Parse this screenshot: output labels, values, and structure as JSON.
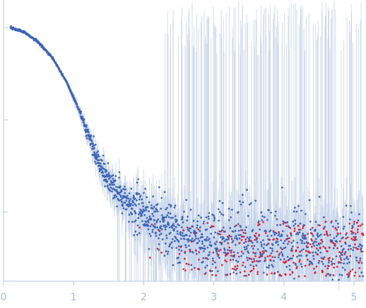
{
  "chart_data": {
    "type": "scatter",
    "title": "",
    "xlabel": "",
    "ylabel": "",
    "xlim": [
      0,
      5.15
    ],
    "y_scale": "log",
    "ylim_log10": [
      -2.75,
      0.3
    ],
    "y_ticks_log10": [
      0,
      -1,
      -2
    ],
    "x_ticks": [
      0,
      1,
      2,
      3,
      4,
      5
    ],
    "x_tick_labels": [
      "0",
      "1",
      "2",
      "3",
      "4",
      "5"
    ],
    "y_tick_labels": [
      "",
      "",
      ""
    ],
    "grid": false,
    "legend": "none",
    "colors": {
      "positive": "#3a64b8",
      "negative": "#e0202f",
      "error_bar": "#c6d4ea",
      "axis": "#b9cae6"
    },
    "series": [
      {
        "role": "intensity (positive values)",
        "color": "#3a64b8",
        "curve": [
          {
            "x": 0.1,
            "y_log10": 0.0
          },
          {
            "x": 0.3,
            "y_log10": -0.05
          },
          {
            "x": 0.5,
            "y_log10": -0.16
          },
          {
            "x": 0.7,
            "y_log10": -0.33
          },
          {
            "x": 0.9,
            "y_log10": -0.59
          },
          {
            "x": 1.1,
            "y_log10": -0.93
          },
          {
            "x": 1.3,
            "y_log10": -1.36
          },
          {
            "x": 1.5,
            "y_log10": -1.67
          },
          {
            "x": 1.7,
            "y_log10": -1.86
          },
          {
            "x": 2.0,
            "y_log10": -2.02
          },
          {
            "x": 2.5,
            "y_log10": -2.24
          },
          {
            "x": 3.0,
            "y_log10": -2.3
          },
          {
            "x": 4.0,
            "y_log10": -2.34
          },
          {
            "x": 5.1,
            "y_log10": -2.34
          }
        ]
      },
      {
        "role": "intensity (negative values, magnitude)",
        "color": "#e0202f",
        "x_range": [
          1.9,
          5.15
        ],
        "y_log10_range": [
          -2.7,
          -2.1
        ]
      }
    ]
  }
}
